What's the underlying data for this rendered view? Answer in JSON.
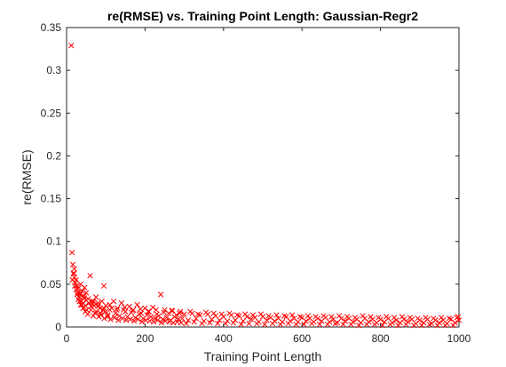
{
  "chart_data": {
    "type": "scatter",
    "title": "re(RMSE) vs. Training Point Length: Gaussian-Regr2",
    "xlabel": "Training Point Length",
    "ylabel": "re(RMSE)",
    "xlim": [
      0,
      1000
    ],
    "ylim": [
      0,
      0.35
    ],
    "xticks": [
      0,
      200,
      400,
      600,
      800,
      1000
    ],
    "yticks": [
      0,
      0.05,
      0.1,
      0.15,
      0.2,
      0.25,
      0.3,
      0.35
    ],
    "xtick_labels": [
      "0",
      "200",
      "400",
      "600",
      "800",
      "1000"
    ],
    "ytick_labels": [
      "0",
      "0.05",
      "0.1",
      "0.15",
      "0.2",
      "0.25",
      "0.3",
      "0.35"
    ],
    "grid": false,
    "legend": "none",
    "marker": "x",
    "color": "#ff0000",
    "series": [
      {
        "x": [
          12,
          14,
          16,
          18,
          20,
          22,
          24,
          26,
          28,
          30,
          32,
          34,
          36,
          38,
          40,
          42,
          44,
          46,
          48,
          50,
          55,
          60,
          65,
          70,
          75,
          80,
          85,
          90,
          95,
          100,
          110,
          120,
          130,
          140,
          150,
          160,
          170,
          180,
          190,
          200,
          210,
          220,
          230,
          240,
          250,
          260,
          270,
          280,
          290,
          300,
          320,
          340,
          360,
          380,
          400,
          420,
          440,
          460,
          480,
          500,
          520,
          540,
          560,
          580,
          600,
          620,
          640,
          660,
          680,
          700,
          720,
          740,
          760,
          780,
          800,
          820,
          840,
          860,
          880,
          900,
          920,
          940,
          960,
          980,
          1000
        ],
        "y": [
          0.329,
          0.087,
          0.073,
          0.063,
          0.058,
          0.052,
          0.055,
          0.048,
          0.04,
          0.045,
          0.035,
          0.038,
          0.05,
          0.03,
          0.042,
          0.028,
          0.036,
          0.046,
          0.025,
          0.04,
          0.033,
          0.06,
          0.03,
          0.025,
          0.035,
          0.028,
          0.022,
          0.03,
          0.048,
          0.025,
          0.02,
          0.03,
          0.022,
          0.028,
          0.018,
          0.024,
          0.02,
          0.026,
          0.016,
          0.022,
          0.018,
          0.023,
          0.015,
          0.038,
          0.02,
          0.016,
          0.019,
          0.014,
          0.018,
          0.015,
          0.016,
          0.014,
          0.015,
          0.013,
          0.012,
          0.014,
          0.013,
          0.012,
          0.011,
          0.012,
          0.011,
          0.01,
          0.012,
          0.01,
          0.011,
          0.01,
          0.01,
          0.011,
          0.009,
          0.01,
          0.01,
          0.009,
          0.01,
          0.009,
          0.009,
          0.01,
          0.008,
          0.009,
          0.009,
          0.008,
          0.009,
          0.008,
          0.008,
          0.009,
          0.008
        ]
      },
      {
        "x": [
          15,
          21,
          27,
          33,
          39,
          45,
          51,
          57,
          63,
          69,
          75,
          81,
          87,
          93,
          99,
          105,
          115,
          125,
          135,
          145,
          155,
          165,
          175,
          185,
          195,
          205,
          215,
          225,
          235,
          245,
          255,
          265,
          275,
          285,
          295,
          310,
          330,
          350,
          370,
          390,
          410,
          430,
          450,
          470,
          490,
          510,
          530,
          550,
          570,
          590,
          610,
          630,
          650,
          670,
          690,
          710,
          730,
          750,
          770,
          790,
          810,
          830,
          850,
          870,
          890,
          910,
          930,
          950,
          970,
          990,
          998
        ],
        "y": [
          0.055,
          0.048,
          0.038,
          0.03,
          0.026,
          0.034,
          0.02,
          0.028,
          0.024,
          0.03,
          0.018,
          0.025,
          0.016,
          0.02,
          0.018,
          0.014,
          0.022,
          0.016,
          0.013,
          0.02,
          0.012,
          0.017,
          0.011,
          0.015,
          0.01,
          0.014,
          0.012,
          0.01,
          0.013,
          0.009,
          0.011,
          0.008,
          0.012,
          0.009,
          0.01,
          0.008,
          0.01,
          0.007,
          0.009,
          0.008,
          0.007,
          0.008,
          0.007,
          0.009,
          0.006,
          0.008,
          0.007,
          0.006,
          0.007,
          0.006,
          0.007,
          0.006,
          0.007,
          0.006,
          0.005,
          0.007,
          0.006,
          0.005,
          0.006,
          0.005,
          0.006,
          0.005,
          0.005,
          0.006,
          0.004,
          0.005,
          0.004,
          0.005,
          0.004,
          0.005,
          0.012
        ]
      },
      {
        "x": [
          18,
          24,
          30,
          36,
          42,
          48,
          54,
          62,
          68,
          74,
          82,
          88,
          96,
          104,
          112,
          122,
          132,
          142,
          152,
          162,
          172,
          182,
          192,
          202,
          212,
          222,
          232,
          242,
          252,
          262,
          272,
          282,
          292,
          305,
          325,
          345,
          365,
          385,
          405,
          425,
          445,
          465,
          485,
          505,
          525,
          545,
          565,
          585,
          605,
          625,
          645,
          665,
          685,
          705,
          725,
          745,
          765,
          785,
          805,
          825,
          845,
          865,
          885,
          905,
          925,
          945,
          965,
          985
        ],
        "y": [
          0.062,
          0.044,
          0.032,
          0.026,
          0.022,
          0.018,
          0.015,
          0.02,
          0.013,
          0.016,
          0.012,
          0.014,
          0.01,
          0.012,
          0.009,
          0.011,
          0.008,
          0.01,
          0.008,
          0.009,
          0.007,
          0.009,
          0.006,
          0.008,
          0.007,
          0.006,
          0.008,
          0.005,
          0.007,
          0.006,
          0.005,
          0.006,
          0.005,
          0.004,
          0.006,
          0.004,
          0.005,
          0.004,
          0.004,
          0.005,
          0.003,
          0.004,
          0.004,
          0.003,
          0.004,
          0.003,
          0.004,
          0.003,
          0.003,
          0.004,
          0.003,
          0.003,
          0.004,
          0.003,
          0.003,
          0.002,
          0.003,
          0.003,
          0.002,
          0.003,
          0.002,
          0.003,
          0.002,
          0.002,
          0.003,
          0.002,
          0.002,
          0.002
        ]
      },
      {
        "x": [
          20,
          35,
          50,
          65,
          80,
          95,
          110,
          128,
          148,
          168,
          188,
          208,
          228,
          248,
          268,
          288,
          315,
          335,
          355,
          375,
          395,
          415,
          435,
          455,
          475,
          495,
          515,
          535,
          555,
          575,
          595,
          615,
          635,
          655,
          675,
          695,
          715,
          735,
          755,
          775,
          795,
          815,
          835,
          855,
          875,
          895,
          915,
          935,
          955,
          975,
          995
        ],
        "y": [
          0.068,
          0.04,
          0.031,
          0.027,
          0.024,
          0.022,
          0.026,
          0.02,
          0.023,
          0.019,
          0.021,
          0.018,
          0.02,
          0.017,
          0.019,
          0.016,
          0.018,
          0.015,
          0.017,
          0.016,
          0.015,
          0.016,
          0.014,
          0.015,
          0.014,
          0.015,
          0.013,
          0.014,
          0.013,
          0.014,
          0.012,
          0.013,
          0.012,
          0.013,
          0.012,
          0.013,
          0.012,
          0.011,
          0.013,
          0.012,
          0.011,
          0.012,
          0.011,
          0.012,
          0.011,
          0.01,
          0.011,
          0.01,
          0.011,
          0.01,
          0.011
        ]
      }
    ]
  }
}
